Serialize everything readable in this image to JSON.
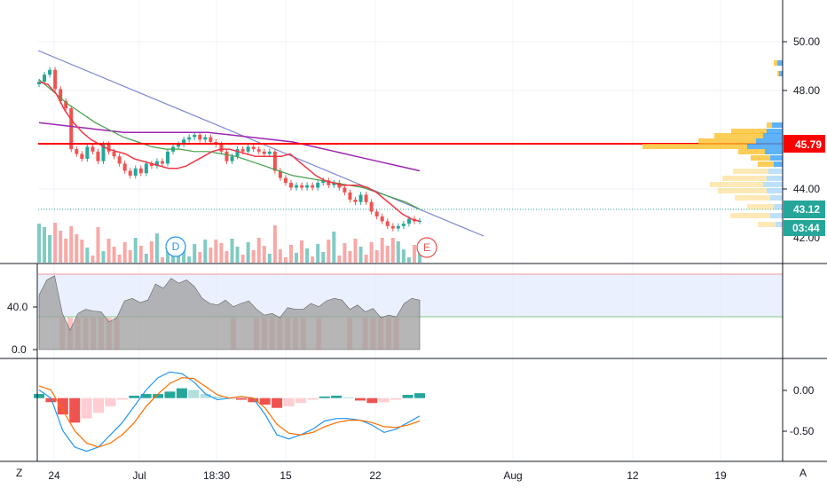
{
  "toolbar": {
    "left_corner": "Z",
    "right_corner": "A"
  },
  "colors": {
    "bull": "#26a69a",
    "bear": "#ef5350",
    "ema_fast": "#f23645",
    "ema_mid": "#43a047",
    "ema_slow": "#9c27b0",
    "trend": "#7b83d4",
    "level": "#ff0000",
    "osc_fill": "#9e9e9e",
    "osc_band": "#e3eafd",
    "macd": "#2196f3",
    "signal": "#ff6d00"
  },
  "main_pane": {
    "price_ticks": [
      "50.00",
      "48.00",
      "44.00",
      "42.00"
    ],
    "horizontal_level": {
      "value": 45.79,
      "label": "45.79"
    },
    "last_price": {
      "value": 43.12,
      "label": "43.12"
    },
    "countdown": "03:44",
    "markers": [
      {
        "label": "D",
        "color": "#2196f3"
      },
      {
        "label": "E",
        "color": "#ef5350"
      }
    ]
  },
  "oscillator_pane": {
    "ticks": [
      "40.0",
      "0.0"
    ]
  },
  "macd_pane": {
    "ticks": [
      "0.00",
      "-0.50"
    ]
  },
  "time_axis": {
    "labels": [
      "24",
      "Jul",
      "18:30",
      "15",
      "22",
      "Aug",
      "12",
      "19"
    ]
  },
  "chart_data": [
    {
      "type": "candlestick",
      "pane": "price",
      "ylim": [
        41.6,
        51.2
      ],
      "grid": true,
      "closes": [
        48.9,
        49.2,
        49.4,
        48.6,
        48.1,
        47.8,
        46.1,
        45.9,
        45.7,
        46.2,
        46.0,
        45.6,
        46.3,
        46.0,
        45.8,
        45.5,
        45.2,
        45.0,
        45.3,
        45.1,
        45.5,
        45.4,
        45.6,
        45.5,
        46.0,
        46.2,
        46.3,
        46.5,
        46.6,
        46.7,
        46.5,
        46.6,
        46.4,
        46.3,
        46.0,
        45.6,
        45.8,
        46.1,
        46.0,
        46.2,
        46.1,
        46.0,
        45.9,
        46.0,
        45.2,
        44.9,
        44.7,
        44.5,
        44.6,
        44.5,
        44.6,
        44.5,
        44.7,
        44.8,
        44.6,
        44.7,
        44.5,
        44.3,
        44.0,
        43.9,
        44.2,
        43.9,
        43.5,
        43.3,
        43.1,
        42.9,
        42.8,
        42.9,
        43.0,
        43.2,
        43.1,
        43.12
      ],
      "ema_fast": [
        48.9,
        48.8,
        48.4,
        47.7,
        47.2,
        46.8,
        46.5,
        46.3,
        46.1,
        46.0,
        45.9,
        45.7,
        45.6,
        45.5,
        45.4,
        45.3,
        45.3,
        45.4,
        45.6,
        45.8,
        46.0,
        46.1,
        46.1,
        46.0,
        45.9,
        45.8,
        45.8,
        45.8,
        45.8,
        45.9,
        45.6,
        45.3,
        45.0,
        44.8,
        44.7,
        44.6,
        44.6,
        44.6,
        44.5,
        44.3,
        44.0,
        43.7,
        43.4,
        43.2,
        43.1
      ],
      "ema_mid": [
        49.0,
        48.5,
        48.0,
        47.6,
        47.2,
        46.9,
        46.6,
        46.4,
        46.2,
        46.1,
        46.1,
        46.0,
        46.0,
        45.9,
        45.8,
        45.6,
        45.4,
        45.2,
        45.0,
        44.9,
        44.8,
        44.7,
        44.6,
        44.5,
        44.3,
        44.1,
        43.9,
        43.6
      ],
      "ema_slow": [
        47.2,
        47.1,
        47.0,
        46.9,
        46.8,
        46.8,
        46.8,
        46.8,
        46.8,
        46.7,
        46.6,
        46.5,
        46.4,
        46.2,
        46.0,
        45.8,
        45.6,
        45.4,
        45.2
      ]
    },
    {
      "type": "area",
      "pane": "oscillator",
      "ylim": [
        -3,
        90
      ],
      "band": [
        30,
        85
      ],
      "values": [
        62,
        80,
        85,
        40,
        20,
        40,
        45,
        43,
        42,
        30,
        35,
        55,
        58,
        53,
        56,
        75,
        70,
        82,
        76,
        80,
        72,
        58,
        52,
        50,
        56,
        48,
        52,
        55,
        45,
        38,
        40,
        35,
        47,
        45,
        45,
        52,
        48,
        55,
        58,
        56,
        45,
        50,
        42,
        46,
        35,
        38,
        36,
        52,
        58,
        56
      ]
    },
    {
      "type": "histogram",
      "pane": "macd",
      "ylim": [
        -0.72,
        0.42
      ],
      "macd": [
        0.1,
        0.0,
        -0.4,
        -0.6,
        -0.65,
        -0.6,
        -0.45,
        -0.3,
        -0.1,
        0.1,
        0.25,
        0.32,
        0.3,
        0.2,
        0.05,
        -0.02,
        0.0,
        0.02,
        0.0,
        -0.2,
        -0.45,
        -0.5,
        -0.45,
        -0.38,
        -0.28,
        -0.25,
        -0.25,
        -0.27,
        -0.33,
        -0.42,
        -0.38,
        -0.3,
        -0.22
      ],
      "signal": [
        0.15,
        0.1,
        -0.15,
        -0.4,
        -0.55,
        -0.6,
        -0.55,
        -0.45,
        -0.3,
        -0.1,
        0.05,
        0.18,
        0.25,
        0.24,
        0.14,
        0.04,
        0.0,
        0.02,
        0.0,
        -0.12,
        -0.32,
        -0.43,
        -0.45,
        -0.42,
        -0.35,
        -0.3,
        -0.27,
        -0.27,
        -0.3,
        -0.35,
        -0.36,
        -0.33,
        -0.28
      ],
      "hist": [
        0.05,
        -0.05,
        -0.2,
        -0.3,
        -0.25,
        -0.18,
        -0.1,
        -0.02,
        0.03,
        0.05,
        0.05,
        0.08,
        0.12,
        0.1,
        0.05,
        0.02,
        0.0,
        -0.02,
        -0.05,
        -0.08,
        -0.12,
        -0.1,
        -0.06,
        -0.02,
        0.02,
        0.03,
        0.01,
        -0.03,
        -0.06,
        -0.05,
        -0.02,
        0.04,
        0.06
      ]
    }
  ]
}
